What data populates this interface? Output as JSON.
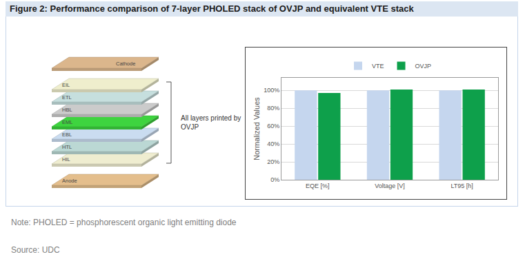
{
  "header": {
    "title": "Figure 2: Performance comparison of 7-layer PHOLED stack of OVJP and equivalent VTE stack"
  },
  "diagram": {
    "layers": [
      {
        "label": "Cathode"
      },
      {
        "label": "EIL",
        "printed": true
      },
      {
        "label": "ETL",
        "printed": true
      },
      {
        "label": "HBL",
        "printed": true
      },
      {
        "label": "EML",
        "printed": true
      },
      {
        "label": "EBL",
        "printed": true
      },
      {
        "label": "HTL",
        "printed": true
      },
      {
        "label": "HIL",
        "printed": true
      },
      {
        "label": "Anode"
      }
    ],
    "bracket_label": "All layers printed by OVJP"
  },
  "chart_data": {
    "type": "bar",
    "categories": [
      "EQE [%]",
      "Voltage [V]",
      "LT95 [h]"
    ],
    "series": [
      {
        "name": "VTE",
        "color": "#c5d6ee",
        "values": [
          100,
          100,
          100
        ]
      },
      {
        "name": "OVJP",
        "color": "#0ea04b",
        "values": [
          97,
          101,
          101
        ]
      }
    ],
    "y_label": "Normalized Values",
    "ylim": [
      0,
      114
    ],
    "yticks": [
      {
        "value": 0,
        "label": "0%"
      },
      {
        "value": 20,
        "label": "20%"
      },
      {
        "value": 40,
        "label": "40%"
      },
      {
        "value": 60,
        "label": "60%"
      },
      {
        "value": 80,
        "label": "80%"
      },
      {
        "value": 100,
        "label": "100%"
      }
    ],
    "grid": true,
    "legend": "top"
  },
  "footer": {
    "note": "Note: PHOLED = phosphorescent organic light emitting diode",
    "source": "Source: UDC"
  }
}
